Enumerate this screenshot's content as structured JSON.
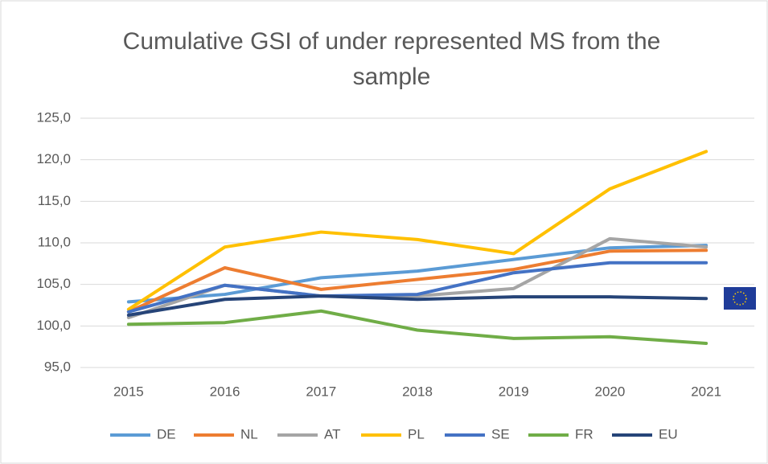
{
  "chart_data": {
    "type": "line",
    "title": "Cumulative GSI of under represented MS from the sample",
    "categories": [
      "2015",
      "2016",
      "2017",
      "2018",
      "2019",
      "2020",
      "2021"
    ],
    "series": [
      {
        "name": "DE",
        "color": "#5b9bd5",
        "values": [
          102.9,
          103.8,
          105.8,
          106.6,
          108.0,
          109.4,
          109.7
        ]
      },
      {
        "name": "NL",
        "color": "#ed7d31",
        "values": [
          101.7,
          107.0,
          104.4,
          105.6,
          106.8,
          109.0,
          109.1
        ]
      },
      {
        "name": "AT",
        "color": "#a5a5a5",
        "values": [
          101.0,
          104.9,
          103.6,
          103.6,
          104.5,
          110.5,
          109.5
        ]
      },
      {
        "name": "PL",
        "color": "#ffc000",
        "values": [
          102.0,
          109.5,
          111.3,
          110.4,
          108.7,
          116.5,
          121.0
        ]
      },
      {
        "name": "SE",
        "color": "#4472c4",
        "values": [
          101.7,
          104.9,
          103.6,
          103.8,
          106.4,
          107.6,
          107.6
        ]
      },
      {
        "name": "FR",
        "color": "#70ad47",
        "values": [
          100.2,
          100.4,
          101.8,
          99.5,
          98.5,
          98.7,
          97.9
        ]
      },
      {
        "name": "EU",
        "color": "#264478",
        "values": [
          101.3,
          103.2,
          103.6,
          103.2,
          103.5,
          103.5,
          103.3
        ]
      }
    ],
    "ylim": [
      95,
      125
    ],
    "yticks": [
      {
        "value": 95,
        "label": "95,0"
      },
      {
        "value": 100,
        "label": "100,0"
      },
      {
        "value": 105,
        "label": "105,0"
      },
      {
        "value": 110,
        "label": "110,0"
      },
      {
        "value": 115,
        "label": "115,0"
      },
      {
        "value": 120,
        "label": "120,0"
      },
      {
        "value": 125,
        "label": "125,0"
      }
    ],
    "grid": true,
    "legend": "bottom"
  }
}
